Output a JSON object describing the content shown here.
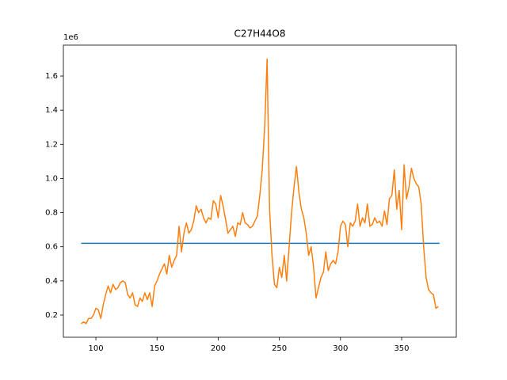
{
  "chart_data": {
    "type": "line",
    "title": "C27H44O8",
    "y_offset_label": "1e6",
    "xlim": [
      73.4,
      394.7
    ],
    "ylim": [
      0.07,
      1.781
    ],
    "xticks": [
      100,
      150,
      200,
      250,
      300,
      350
    ],
    "yticks": [
      0.2,
      0.4,
      0.6,
      0.8,
      {
        "value": 1,
        "label": "1.0"
      },
      1.2,
      1.4,
      1.6
    ],
    "series": [
      {
        "color": "#1f77b4",
        "x": [
          88,
          381
        ],
        "values": [
          0.62,
          0.62
        ]
      },
      {
        "color": "#ff7f0e",
        "x": [
          88,
          90,
          92,
          94,
          96,
          98,
          100,
          102,
          104,
          106,
          108,
          110,
          112,
          114,
          116,
          118,
          120,
          122,
          124,
          126,
          128,
          130,
          132,
          134,
          136,
          138,
          140,
          142,
          144,
          146,
          148,
          150,
          152,
          154,
          156,
          158,
          160,
          162,
          164,
          166,
          168,
          170,
          172,
          174,
          176,
          178,
          180,
          182,
          184,
          186,
          188,
          190,
          192,
          194,
          196,
          198,
          200,
          202,
          204,
          206,
          208,
          210,
          212,
          214,
          216,
          218,
          220,
          222,
          224,
          226,
          228,
          230,
          232,
          234,
          236,
          238,
          240,
          242,
          244,
          246,
          248,
          250,
          252,
          254,
          256,
          258,
          260,
          262,
          264,
          266,
          268,
          270,
          272,
          274,
          276,
          278,
          280,
          282,
          284,
          286,
          288,
          290,
          292,
          294,
          296,
          298,
          300,
          302,
          304,
          306,
          308,
          310,
          312,
          314,
          316,
          318,
          320,
          322,
          324,
          326,
          328,
          330,
          332,
          334,
          336,
          338,
          340,
          342,
          344,
          346,
          348,
          350,
          352,
          354,
          356,
          358,
          360,
          362,
          364,
          366,
          368,
          370,
          372,
          374,
          376,
          378,
          380
        ],
        "values": [
          0.15,
          0.16,
          0.15,
          0.18,
          0.18,
          0.2,
          0.24,
          0.23,
          0.18,
          0.26,
          0.32,
          0.37,
          0.33,
          0.38,
          0.35,
          0.36,
          0.39,
          0.4,
          0.39,
          0.32,
          0.3,
          0.33,
          0.26,
          0.25,
          0.3,
          0.28,
          0.33,
          0.29,
          0.33,
          0.25,
          0.37,
          0.4,
          0.44,
          0.47,
          0.5,
          0.44,
          0.55,
          0.48,
          0.52,
          0.55,
          0.72,
          0.57,
          0.68,
          0.74,
          0.68,
          0.7,
          0.75,
          0.84,
          0.8,
          0.82,
          0.77,
          0.74,
          0.77,
          0.76,
          0.87,
          0.85,
          0.77,
          0.9,
          0.84,
          0.76,
          0.68,
          0.7,
          0.72,
          0.66,
          0.74,
          0.73,
          0.8,
          0.74,
          0.73,
          0.71,
          0.72,
          0.75,
          0.78,
          0.9,
          1.05,
          1.3,
          1.7,
          0.82,
          0.55,
          0.38,
          0.36,
          0.48,
          0.42,
          0.55,
          0.4,
          0.6,
          0.8,
          0.95,
          1.07,
          0.92,
          0.82,
          0.77,
          0.68,
          0.55,
          0.6,
          0.48,
          0.3,
          0.36,
          0.42,
          0.45,
          0.57,
          0.46,
          0.5,
          0.52,
          0.5,
          0.57,
          0.72,
          0.75,
          0.73,
          0.6,
          0.74,
          0.72,
          0.75,
          0.85,
          0.72,
          0.77,
          0.74,
          0.85,
          0.72,
          0.73,
          0.77,
          0.74,
          0.75,
          0.72,
          0.81,
          0.73,
          0.88,
          0.9,
          1.05,
          0.82,
          0.93,
          0.7,
          1.08,
          0.88,
          0.95,
          1.06,
          1.0,
          0.97,
          0.95,
          0.85,
          0.6,
          0.42,
          0.35,
          0.33,
          0.32,
          0.24,
          0.25
        ]
      }
    ]
  }
}
